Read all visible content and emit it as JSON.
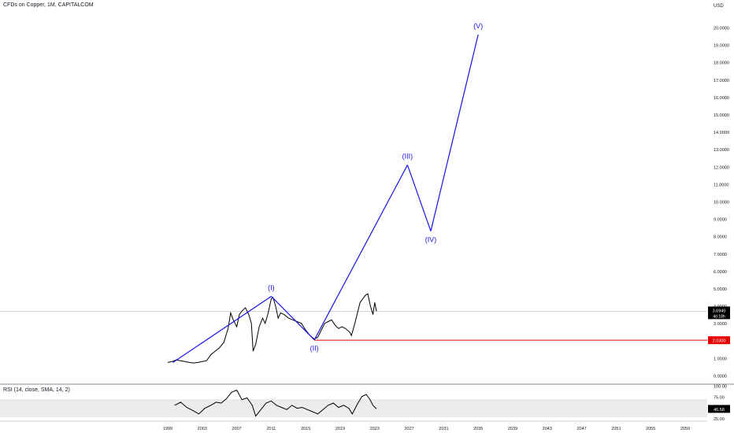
{
  "header": {
    "title": "CFDs on Copper, 1M, CAPITALCOM"
  },
  "rsi_panel": {
    "title": "RSI (14, close, SMA, 14, 2)"
  },
  "colors": {
    "wave": "#1515e6",
    "price": "#000000",
    "support": "#e60000",
    "label": "#1515e6",
    "rsi_band": "#ececec"
  },
  "chart_data": [
    {
      "type": "line",
      "currency": "USD",
      "y_ticks": [
        "0.0000",
        "1.0000",
        "2.0000",
        "3.0000",
        "4.0000",
        "5.0000",
        "6.0000",
        "7.0000",
        "8.0000",
        "9.0000",
        "10.0000",
        "11.0000",
        "12.0000",
        "13.0000",
        "14.0000",
        "15.0000",
        "16.0000",
        "17.0000",
        "18.0000",
        "19.0000",
        "20.0000"
      ],
      "x_ticks": [
        "1999",
        "2003",
        "2007",
        "2011",
        "2015",
        "2019",
        "2023",
        "2027",
        "2031",
        "2035",
        "2039",
        "2043",
        "2047",
        "2051",
        "2055",
        "2059"
      ],
      "last_price_label": "3.6940",
      "countdown_label": "4d 18h",
      "support_label": "2.0300",
      "support_level": 2.03,
      "price_series": {
        "x": [
          1999.0,
          1999.5,
          2000.0,
          2000.5,
          2001.0,
          2001.5,
          2002.0,
          2002.5,
          2003.0,
          2003.5,
          2004.0,
          2004.5,
          2005.0,
          2005.5,
          2006.0,
          2006.3,
          2006.6,
          2007.0,
          2007.3,
          2007.6,
          2008.0,
          2008.4,
          2008.7,
          2008.9,
          2009.2,
          2009.6,
          2010.0,
          2010.3,
          2010.6,
          2011.0,
          2011.2,
          2011.5,
          2011.8,
          2012.1,
          2012.5,
          2013.0,
          2013.5,
          2014.0,
          2014.5,
          2015.0,
          2015.5,
          2016.0,
          2016.4,
          2016.8,
          2017.2,
          2017.6,
          2018.0,
          2018.4,
          2018.8,
          2019.2,
          2019.6,
          2020.1,
          2020.3,
          2020.7,
          2021.0,
          2021.3,
          2021.6,
          2021.9,
          2022.2,
          2022.5,
          2022.8,
          2023.0,
          2023.2
        ],
        "y": [
          0.75,
          0.8,
          0.9,
          0.85,
          0.8,
          0.75,
          0.72,
          0.75,
          0.8,
          0.85,
          1.2,
          1.4,
          1.6,
          1.9,
          2.7,
          3.6,
          3.2,
          2.8,
          3.5,
          3.7,
          3.9,
          3.5,
          3.0,
          1.4,
          1.8,
          2.8,
          3.3,
          3.0,
          3.5,
          4.4,
          4.5,
          4.0,
          3.3,
          3.6,
          3.5,
          3.3,
          3.2,
          3.1,
          3.0,
          2.6,
          2.3,
          2.1,
          2.2,
          2.6,
          3.0,
          3.1,
          3.2,
          2.9,
          2.7,
          2.8,
          2.7,
          2.5,
          2.3,
          3.0,
          3.6,
          4.2,
          4.4,
          4.6,
          4.7,
          4.0,
          3.5,
          4.2,
          3.694
        ]
      },
      "wave_projection": {
        "x": [
          1999.6,
          2011.0,
          2016.0,
          2026.8,
          2029.5,
          2035.0
        ],
        "y": [
          0.75,
          4.55,
          2.05,
          12.1,
          8.3,
          19.6
        ],
        "labels": [
          "(I)",
          "(II)",
          "(III)",
          "(IV)",
          "(V)"
        ]
      }
    },
    {
      "type": "line",
      "name": "RSI",
      "y_ticks": [
        "100.00",
        "75.00",
        "50.00",
        "25.00"
      ],
      "value_label": "46.58",
      "overbought": 70,
      "oversold": 30,
      "series": {
        "x": [
          1999.8,
          2000.5,
          2001.2,
          2002.0,
          2002.6,
          2003.3,
          2004.0,
          2004.6,
          2005.2,
          2005.8,
          2006.4,
          2007.0,
          2007.6,
          2008.2,
          2008.8,
          2009.2,
          2009.8,
          2010.4,
          2011.0,
          2011.6,
          2012.2,
          2012.8,
          2013.4,
          2014.0,
          2014.6,
          2015.2,
          2015.8,
          2016.4,
          2017.0,
          2017.6,
          2018.2,
          2018.8,
          2019.4,
          2020.0,
          2020.4,
          2021.0,
          2021.5,
          2022.0,
          2022.4,
          2022.8,
          2023.2
        ],
        "y": [
          55,
          62,
          50,
          42,
          35,
          48,
          55,
          62,
          60,
          70,
          85,
          90,
          68,
          72,
          55,
          30,
          45,
          60,
          65,
          55,
          50,
          45,
          55,
          48,
          50,
          45,
          40,
          35,
          45,
          55,
          60,
          50,
          55,
          48,
          35,
          58,
          75,
          80,
          70,
          55,
          46.58
        ]
      }
    }
  ]
}
